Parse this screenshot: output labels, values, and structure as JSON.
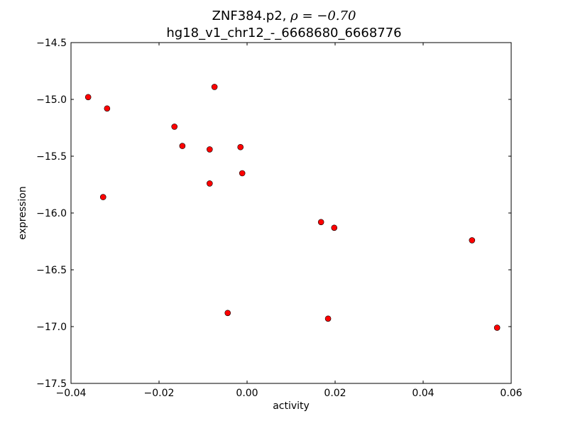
{
  "chart_data": {
    "type": "scatter",
    "title_line1_text": "ZNF384.p2, ",
    "title_line1_math": "ρ = −0.70",
    "title_line2": "hg18_v1_chr12_-_6668680_6668776",
    "xlabel": "activity",
    "ylabel": "expression",
    "xlim": [
      -0.04,
      0.06
    ],
    "ylim": [
      -17.5,
      -14.5
    ],
    "xticks": [
      -0.04,
      -0.02,
      0.0,
      0.02,
      0.04,
      0.06
    ],
    "xtick_labels": [
      "−0.04",
      "−0.02",
      "0.00",
      "0.02",
      "0.04",
      "0.06"
    ],
    "yticks": [
      -14.5,
      -15.0,
      -15.5,
      -16.0,
      -16.5,
      -17.0,
      -17.5
    ],
    "ytick_labels": [
      "−14.5",
      "−15.0",
      "−15.5",
      "−16.0",
      "−16.5",
      "−17.0",
      "−17.5"
    ],
    "grid": false,
    "marker_color": "#ff0000",
    "points": [
      {
        "x": -0.0361,
        "y": -14.98
      },
      {
        "x": -0.0318,
        "y": -15.08
      },
      {
        "x": -0.0074,
        "y": -14.89
      },
      {
        "x": -0.0165,
        "y": -15.24
      },
      {
        "x": -0.0147,
        "y": -15.41
      },
      {
        "x": -0.0085,
        "y": -15.44
      },
      {
        "x": -0.0015,
        "y": -15.42
      },
      {
        "x": -0.0011,
        "y": -15.65
      },
      {
        "x": -0.0085,
        "y": -15.74
      },
      {
        "x": -0.0327,
        "y": -15.86
      },
      {
        "x": 0.0168,
        "y": -16.08
      },
      {
        "x": 0.0198,
        "y": -16.13
      },
      {
        "x": 0.0511,
        "y": -16.24
      },
      {
        "x": -0.0044,
        "y": -16.88
      },
      {
        "x": 0.0184,
        "y": -16.93
      },
      {
        "x": 0.0568,
        "y": -17.01
      }
    ]
  }
}
